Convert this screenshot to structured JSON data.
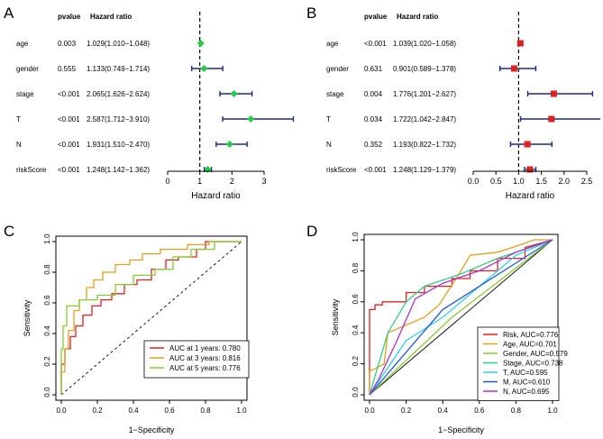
{
  "chart_data": [
    {
      "panel": "A",
      "type": "forest",
      "columns": {
        "pvalue": "pvalue",
        "hr": "Hazard ratio"
      },
      "xlabel": "Hazard ratio",
      "xlim": [
        0,
        3
      ],
      "ticks": [
        "0",
        "1",
        "2",
        "3"
      ],
      "reference_line": 1,
      "marker_color": "#22cc44",
      "rows": [
        {
          "label": "age",
          "pvalue": "0.003",
          "hr_text": "1.029(1.010−1.048)",
          "hr": 1.029,
          "lo": 1.01,
          "hi": 1.048
        },
        {
          "label": "gender",
          "pvalue": "0.555",
          "hr_text": "1.133(0.749−1.714)",
          "hr": 1.133,
          "lo": 0.749,
          "hi": 1.714
        },
        {
          "label": "stage",
          "pvalue": "<0.001",
          "hr_text": "2.065(1.626−2.624)",
          "hr": 2.065,
          "lo": 1.626,
          "hi": 2.624
        },
        {
          "label": "T",
          "pvalue": "<0.001",
          "hr_text": "2.587(1.712−3.910)",
          "hr": 2.587,
          "lo": 1.712,
          "hi": 3.91
        },
        {
          "label": "N",
          "pvalue": "<0.001",
          "hr_text": "1.931(1.510−2.470)",
          "hr": 1.931,
          "lo": 1.51,
          "hi": 2.47
        },
        {
          "label": "riskScore",
          "pvalue": "<0.001",
          "hr_text": "1.248(1.142−1.362)",
          "hr": 1.248,
          "lo": 1.142,
          "hi": 1.362
        }
      ]
    },
    {
      "panel": "B",
      "type": "forest",
      "columns": {
        "pvalue": "pvalue",
        "hr": "Hazard ratio"
      },
      "xlabel": "Hazard ratio",
      "xlim": [
        0,
        2.5
      ],
      "ticks": [
        "0.0",
        "0.5",
        "1.0",
        "1.5",
        "2.0",
        "2.5"
      ],
      "reference_line": 1,
      "marker_color": "#dd2222",
      "rows": [
        {
          "label": "age",
          "pvalue": "<0.001",
          "hr_text": "1.039(1.020−1.058)",
          "hr": 1.039,
          "lo": 1.02,
          "hi": 1.058
        },
        {
          "label": "gender",
          "pvalue": "0.631",
          "hr_text": "0.901(0.589−1.378)",
          "hr": 0.901,
          "lo": 0.589,
          "hi": 1.378
        },
        {
          "label": "stage",
          "pvalue": "0.004",
          "hr_text": "1.776(1.201−2.627)",
          "hr": 1.776,
          "lo": 1.201,
          "hi": 2.627
        },
        {
          "label": "T",
          "pvalue": "0.034",
          "hr_text": "1.722(1.042−2.847)",
          "hr": 1.722,
          "lo": 1.042,
          "hi": 2.847
        },
        {
          "label": "N",
          "pvalue": "0.352",
          "hr_text": "1.193(0.822−1.732)",
          "hr": 1.193,
          "lo": 0.822,
          "hi": 1.732
        },
        {
          "label": "riskScore",
          "pvalue": "<0.001",
          "hr_text": "1.248(1.129−1.379)",
          "hr": 1.248,
          "lo": 1.129,
          "hi": 1.379
        }
      ]
    },
    {
      "panel": "C",
      "type": "line",
      "subtype": "roc",
      "xlabel": "1−Specificity",
      "ylabel": "Sensitivity",
      "xlim": [
        0,
        1
      ],
      "ylim": [
        0,
        1
      ],
      "ticks": [
        "0.0",
        "0.2",
        "0.4",
        "0.6",
        "0.8",
        "1.0"
      ],
      "legend_position": "bottom-right",
      "series": [
        {
          "name": "AUC at 1 years: 0.780",
          "color": "#dd2222",
          "points": [
            [
              0,
              0
            ],
            [
              0,
              0.2
            ],
            [
              0.02,
              0.2
            ],
            [
              0.02,
              0.3
            ],
            [
              0.05,
              0.3
            ],
            [
              0.05,
              0.38
            ],
            [
              0.08,
              0.38
            ],
            [
              0.08,
              0.45
            ],
            [
              0.12,
              0.45
            ],
            [
              0.12,
              0.52
            ],
            [
              0.17,
              0.52
            ],
            [
              0.17,
              0.58
            ],
            [
              0.22,
              0.58
            ],
            [
              0.22,
              0.62
            ],
            [
              0.28,
              0.62
            ],
            [
              0.28,
              0.66
            ],
            [
              0.35,
              0.66
            ],
            [
              0.35,
              0.72
            ],
            [
              0.42,
              0.72
            ],
            [
              0.42,
              0.75
            ],
            [
              0.5,
              0.75
            ],
            [
              0.5,
              0.82
            ],
            [
              0.58,
              0.82
            ],
            [
              0.58,
              0.88
            ],
            [
              0.65,
              0.88
            ],
            [
              0.65,
              0.9
            ],
            [
              0.75,
              0.9
            ],
            [
              0.75,
              0.95
            ],
            [
              0.8,
              0.95
            ],
            [
              0.8,
              1.0
            ],
            [
              1,
              1
            ]
          ]
        },
        {
          "name": "AUC at 3 years: 0.816",
          "color": "#e0a020",
          "points": [
            [
              0,
              0
            ],
            [
              0,
              0.15
            ],
            [
              0.02,
              0.15
            ],
            [
              0.02,
              0.3
            ],
            [
              0.04,
              0.3
            ],
            [
              0.04,
              0.42
            ],
            [
              0.07,
              0.42
            ],
            [
              0.07,
              0.55
            ],
            [
              0.1,
              0.55
            ],
            [
              0.1,
              0.62
            ],
            [
              0.14,
              0.62
            ],
            [
              0.14,
              0.7
            ],
            [
              0.18,
              0.7
            ],
            [
              0.18,
              0.75
            ],
            [
              0.23,
              0.75
            ],
            [
              0.23,
              0.8
            ],
            [
              0.3,
              0.8
            ],
            [
              0.3,
              0.85
            ],
            [
              0.38,
              0.85
            ],
            [
              0.38,
              0.88
            ],
            [
              0.45,
              0.88
            ],
            [
              0.45,
              0.92
            ],
            [
              0.55,
              0.92
            ],
            [
              0.55,
              0.95
            ],
            [
              0.7,
              0.95
            ],
            [
              0.7,
              0.98
            ],
            [
              0.82,
              0.98
            ],
            [
              0.82,
              1.0
            ],
            [
              1,
              1
            ]
          ]
        },
        {
          "name": "AUC at 5 years: 0.776",
          "color": "#88cc33",
          "points": [
            [
              0,
              0
            ],
            [
              0,
              0.3
            ],
            [
              0.01,
              0.3
            ],
            [
              0.01,
              0.45
            ],
            [
              0.03,
              0.45
            ],
            [
              0.03,
              0.58
            ],
            [
              0.1,
              0.58
            ],
            [
              0.1,
              0.62
            ],
            [
              0.2,
              0.62
            ],
            [
              0.2,
              0.65
            ],
            [
              0.3,
              0.65
            ],
            [
              0.3,
              0.72
            ],
            [
              0.4,
              0.72
            ],
            [
              0.4,
              0.78
            ],
            [
              0.52,
              0.78
            ],
            [
              0.52,
              0.82
            ],
            [
              0.62,
              0.82
            ],
            [
              0.62,
              0.9
            ],
            [
              0.72,
              0.9
            ],
            [
              0.72,
              0.95
            ],
            [
              0.85,
              0.95
            ],
            [
              0.85,
              1.0
            ],
            [
              1,
              1
            ]
          ]
        }
      ]
    },
    {
      "panel": "D",
      "type": "line",
      "subtype": "roc",
      "xlabel": "1−Specificity",
      "ylabel": "Sensitivity",
      "xlim": [
        0,
        1
      ],
      "ylim": [
        0,
        1
      ],
      "ticks": [
        "0.0",
        "0.2",
        "0.4",
        "0.6",
        "0.8",
        "1.0"
      ],
      "legend_position": "bottom-right",
      "series": [
        {
          "name": "Risk, AUC=0.776",
          "color": "#dd2222",
          "points": [
            [
              0,
              0
            ],
            [
              0,
              0.55
            ],
            [
              0.03,
              0.55
            ],
            [
              0.03,
              0.58
            ],
            [
              0.07,
              0.58
            ],
            [
              0.07,
              0.6
            ],
            [
              0.2,
              0.6
            ],
            [
              0.2,
              0.66
            ],
            [
              0.3,
              0.66
            ],
            [
              0.3,
              0.7
            ],
            [
              0.45,
              0.7
            ],
            [
              0.45,
              0.75
            ],
            [
              0.55,
              0.75
            ],
            [
              0.55,
              0.8
            ],
            [
              0.7,
              0.8
            ],
            [
              0.7,
              0.88
            ],
            [
              0.85,
              0.88
            ],
            [
              0.85,
              0.95
            ],
            [
              1,
              1
            ]
          ]
        },
        {
          "name": "Age, AUC=0.701",
          "color": "#e0a020",
          "points": [
            [
              0,
              0
            ],
            [
              0,
              0.15
            ],
            [
              0.08,
              0.2
            ],
            [
              0.1,
              0.4
            ],
            [
              0.2,
              0.45
            ],
            [
              0.3,
              0.5
            ],
            [
              0.38,
              0.58
            ],
            [
              0.5,
              0.8
            ],
            [
              0.55,
              0.9
            ],
            [
              0.7,
              0.92
            ],
            [
              0.78,
              0.95
            ],
            [
              0.9,
              1.0
            ],
            [
              1,
              1
            ]
          ]
        },
        {
          "name": "Gender, AUC=0.579",
          "color": "#88cc33",
          "points": [
            [
              0,
              0
            ],
            [
              0.45,
              0.5
            ],
            [
              1,
              1
            ]
          ]
        },
        {
          "name": "Stage, AUC=0.738",
          "color": "#33cc88",
          "points": [
            [
              0,
              0
            ],
            [
              0.1,
              0.4
            ],
            [
              0.2,
              0.6
            ],
            [
              0.3,
              0.7
            ],
            [
              0.5,
              0.78
            ],
            [
              0.7,
              0.88
            ],
            [
              1,
              1
            ]
          ]
        },
        {
          "name": "T, AUC=0.595",
          "color": "#33ccee",
          "points": [
            [
              0,
              0
            ],
            [
              0.2,
              0.35
            ],
            [
              0.4,
              0.5
            ],
            [
              0.6,
              0.7
            ],
            [
              0.8,
              0.9
            ],
            [
              1,
              1
            ]
          ]
        },
        {
          "name": "M, AUC=0.610",
          "color": "#2255dd",
          "points": [
            [
              0,
              0
            ],
            [
              0.4,
              0.55
            ],
            [
              1,
              1
            ]
          ]
        },
        {
          "name": "N, AUC=0.695",
          "color": "#aa33cc",
          "points": [
            [
              0,
              0
            ],
            [
              0.05,
              0.1
            ],
            [
              0.15,
              0.35
            ],
            [
              0.25,
              0.62
            ],
            [
              0.4,
              0.72
            ],
            [
              0.6,
              0.8
            ],
            [
              0.8,
              0.92
            ],
            [
              1,
              1
            ]
          ]
        }
      ]
    }
  ]
}
